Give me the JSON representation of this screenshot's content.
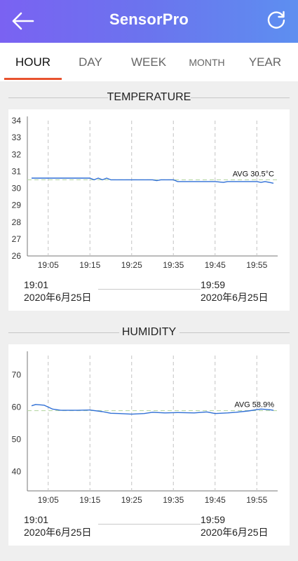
{
  "app": {
    "title": "SensorPro",
    "back_icon": "arrow-left-icon",
    "refresh_icon": "refresh-icon",
    "header_gradient": [
      "#7a62f2",
      "#5d8ff0"
    ]
  },
  "tabs": [
    {
      "label": "HOUR",
      "active": true
    },
    {
      "label": "DAY",
      "active": false
    },
    {
      "label": "WEEK",
      "active": false
    },
    {
      "label": "MONTH",
      "active": false
    },
    {
      "label": "YEAR",
      "active": false
    }
  ],
  "accent_color": "#e8522f",
  "line_color": "#2f6fd6",
  "avg_line_color": "#b9d8a8",
  "temperature": {
    "title": "TEMPERATURE",
    "start_time": "19:01",
    "start_date": "2020年6月25日",
    "end_time": "19:59",
    "end_date": "2020年6月25日"
  },
  "humidity": {
    "title": "HUMIDITY",
    "start_time": "19:01",
    "start_date": "2020年6月25日",
    "end_time": "19:59",
    "end_date": "2020年6月25日"
  },
  "chart_data": [
    {
      "type": "line",
      "title": "TEMPERATURE",
      "x_ticks": [
        "19:05",
        "19:15",
        "19:25",
        "19:35",
        "19:45",
        "19:55"
      ],
      "x_range": [
        "19:01",
        "19:59"
      ],
      "y_ticks": [
        26,
        27,
        28,
        29,
        30,
        31,
        32,
        33,
        34
      ],
      "ylim": [
        26,
        34
      ],
      "avg_label": "AVG 30.5°C",
      "avg": 30.5,
      "series": [
        {
          "x": [
            "19:01",
            "19:05",
            "19:10",
            "19:15",
            "19:16",
            "19:17",
            "19:18",
            "19:19",
            "19:20",
            "19:21",
            "19:25",
            "19:30",
            "19:31",
            "19:32",
            "19:35",
            "19:36",
            "19:40",
            "19:45",
            "19:47",
            "19:48",
            "19:50",
            "19:55",
            "19:56",
            "19:57",
            "19:58",
            "19:59"
          ],
          "y": [
            30.6,
            30.6,
            30.6,
            30.6,
            30.5,
            30.6,
            30.5,
            30.6,
            30.5,
            30.5,
            30.5,
            30.5,
            30.45,
            30.5,
            30.5,
            30.4,
            30.4,
            30.4,
            30.35,
            30.4,
            30.4,
            30.4,
            30.35,
            30.4,
            30.35,
            30.3
          ]
        }
      ],
      "grid": "vertical dashed"
    },
    {
      "type": "line",
      "title": "HUMIDITY",
      "x_ticks": [
        "19:05",
        "19:15",
        "19:25",
        "19:35",
        "19:45",
        "19:55"
      ],
      "x_range": [
        "19:01",
        "19:59"
      ],
      "y_ticks": [
        40,
        50,
        60,
        70
      ],
      "ylim": [
        34,
        76
      ],
      "avg_label": "AVG 58.9%",
      "avg": 58.9,
      "series": [
        {
          "x": [
            "19:01",
            "19:02",
            "19:04",
            "19:06",
            "19:08",
            "19:12",
            "19:15",
            "19:18",
            "19:20",
            "19:22",
            "19:25",
            "19:28",
            "19:30",
            "19:33",
            "19:36",
            "19:40",
            "19:43",
            "19:45",
            "19:48",
            "19:50",
            "19:53",
            "19:56",
            "19:58",
            "19:59"
          ],
          "y": [
            60.4,
            60.8,
            60.6,
            59.4,
            59.0,
            59.0,
            59.1,
            58.6,
            58.1,
            58.0,
            57.8,
            58.0,
            58.4,
            58.2,
            58.3,
            58.2,
            58.5,
            58.0,
            58.2,
            58.4,
            58.8,
            59.4,
            59.2,
            59.0
          ]
        }
      ],
      "grid": "vertical dashed"
    }
  ]
}
